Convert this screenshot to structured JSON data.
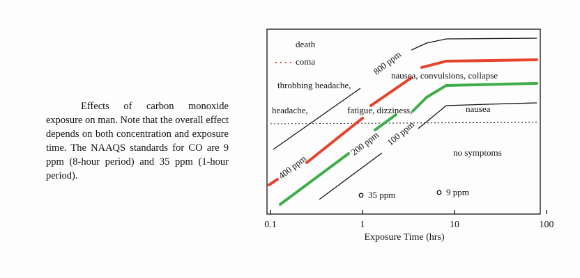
{
  "caption": "Effects of carbon monoxide exposure on man. Note that the overall effect depends on both concentration and exposure time. The NAAQS standards for CO are 9 ppm (8-hour period) and 35 ppm (1-hour period).",
  "figure": {
    "xlabel": "Exposure Time (hrs)",
    "xlim": [
      0.1,
      100
    ],
    "xticks": [
      0.1,
      1,
      10,
      100
    ],
    "log_x": true,
    "curve_labels": [
      "800 ppm",
      "400 ppm",
      "200 ppm",
      "100 ppm"
    ],
    "effects": [
      "death",
      "coma",
      "throbbing headache,",
      "nausea, convulsions, collapse",
      "headache,",
      "fatigue, dizziness,",
      "nausea",
      "no symptoms"
    ],
    "markers": [
      "35 ppm",
      "9 ppm"
    ]
  }
}
